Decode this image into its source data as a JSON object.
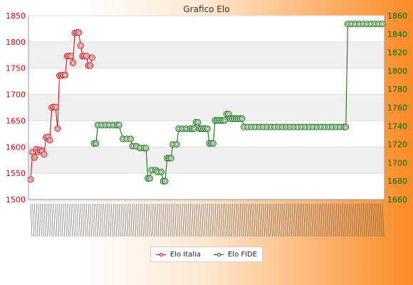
{
  "chart_data": {
    "type": "line",
    "title": "Grafico Elo",
    "xlabel": "",
    "ylabel": "",
    "left_axis": {
      "range": [
        1500,
        1850
      ],
      "ticks": [
        1500,
        1550,
        1600,
        1650,
        1700,
        1750,
        1800,
        1850
      ],
      "color": "#dd0000"
    },
    "right_axis": {
      "range": [
        1660,
        1860
      ],
      "ticks": [
        1660,
        1680,
        1700,
        1720,
        1740,
        1760,
        1780,
        1800,
        1820,
        1840,
        1860
      ],
      "color": "#006600"
    },
    "grid": true,
    "legend_position": "bottom-center",
    "series": [
      {
        "name": "Elo Italia",
        "axis": "left",
        "color": "#dd0000",
        "points": [
          [
            0,
            1538
          ],
          [
            1,
            1590
          ],
          [
            2,
            1580
          ],
          [
            3,
            1596
          ],
          [
            4,
            1591
          ],
          [
            5,
            1594
          ],
          [
            6,
            1592
          ],
          [
            7,
            1586
          ],
          [
            8,
            1618
          ],
          [
            9,
            1619
          ],
          [
            10,
            1613
          ],
          [
            11,
            1675
          ],
          [
            12,
            1676
          ],
          [
            13,
            1676
          ],
          [
            14,
            1635
          ],
          [
            15,
            1736
          ],
          [
            16,
            1736
          ],
          [
            17,
            1737
          ],
          [
            18,
            1737
          ],
          [
            19,
            1773
          ],
          [
            20,
            1773
          ],
          [
            21,
            1773
          ],
          [
            22,
            1760
          ],
          [
            23,
            1817
          ],
          [
            24,
            1818
          ],
          [
            25,
            1818
          ],
          [
            26,
            1793
          ],
          [
            27,
            1773
          ],
          [
            28,
            1773
          ],
          [
            29,
            1773
          ],
          [
            30,
            1755
          ],
          [
            31,
            1755
          ],
          [
            32,
            1770
          ]
        ]
      },
      {
        "name": "Elo FIDE",
        "axis": "right",
        "color": "#006600",
        "points": [
          [
            33,
            1721
          ],
          [
            34,
            1721
          ],
          [
            35,
            1741
          ],
          [
            37,
            1741
          ],
          [
            39,
            1741
          ],
          [
            41,
            1741
          ],
          [
            43,
            1741
          ],
          [
            45,
            1741
          ],
          [
            46,
            1741
          ],
          [
            48,
            1726
          ],
          [
            50,
            1726
          ],
          [
            52,
            1726
          ],
          [
            53,
            1718
          ],
          [
            55,
            1718
          ],
          [
            57,
            1716
          ],
          [
            59,
            1716
          ],
          [
            60,
            1716
          ],
          [
            61,
            1683
          ],
          [
            62,
            1683
          ],
          [
            63,
            1692
          ],
          [
            65,
            1692
          ],
          [
            66,
            1690
          ],
          [
            68,
            1690
          ],
          [
            69,
            1680
          ],
          [
            70,
            1680
          ],
          [
            71,
            1705
          ],
          [
            72,
            1705
          ],
          [
            73,
            1705
          ],
          [
            74,
            1720
          ],
          [
            76,
            1720
          ],
          [
            77,
            1737
          ],
          [
            79,
            1737
          ],
          [
            81,
            1737
          ],
          [
            83,
            1737
          ],
          [
            84,
            1737
          ],
          [
            85,
            1737
          ],
          [
            86,
            1744
          ],
          [
            87,
            1744
          ],
          [
            88,
            1737
          ],
          [
            89,
            1737
          ],
          [
            90,
            1737
          ],
          [
            91,
            1737
          ],
          [
            92,
            1737
          ],
          [
            93,
            1721
          ],
          [
            94,
            1721
          ],
          [
            95,
            1721
          ],
          [
            96,
            1746
          ],
          [
            97,
            1746
          ],
          [
            98,
            1746
          ],
          [
            99,
            1746
          ],
          [
            100,
            1746
          ],
          [
            101,
            1746
          ],
          [
            102,
            1753
          ],
          [
            103,
            1753
          ],
          [
            104,
            1748
          ],
          [
            105,
            1748
          ],
          [
            106,
            1748
          ],
          [
            107,
            1748
          ],
          [
            108,
            1748
          ],
          [
            109,
            1748
          ],
          [
            110,
            1748
          ],
          [
            111,
            1739
          ],
          [
            113,
            1739
          ],
          [
            115,
            1739
          ],
          [
            117,
            1739
          ],
          [
            119,
            1739
          ],
          [
            121,
            1739
          ],
          [
            123,
            1739
          ],
          [
            125,
            1739
          ],
          [
            127,
            1739
          ],
          [
            129,
            1739
          ],
          [
            131,
            1739
          ],
          [
            133,
            1739
          ],
          [
            135,
            1739
          ],
          [
            137,
            1739
          ],
          [
            139,
            1739
          ],
          [
            141,
            1739
          ],
          [
            143,
            1739
          ],
          [
            145,
            1739
          ],
          [
            147,
            1739
          ],
          [
            149,
            1739
          ],
          [
            151,
            1739
          ],
          [
            153,
            1739
          ],
          [
            155,
            1739
          ],
          [
            157,
            1739
          ],
          [
            159,
            1739
          ],
          [
            161,
            1739
          ],
          [
            163,
            1739
          ],
          [
            164,
            1739
          ],
          [
            165,
            1851
          ],
          [
            167,
            1851
          ],
          [
            169,
            1851
          ],
          [
            171,
            1851
          ],
          [
            173,
            1851
          ],
          [
            175,
            1851
          ],
          [
            177,
            1851
          ],
          [
            179,
            1851
          ],
          [
            181,
            1851
          ],
          [
            183,
            1851
          ]
        ]
      }
    ]
  }
}
